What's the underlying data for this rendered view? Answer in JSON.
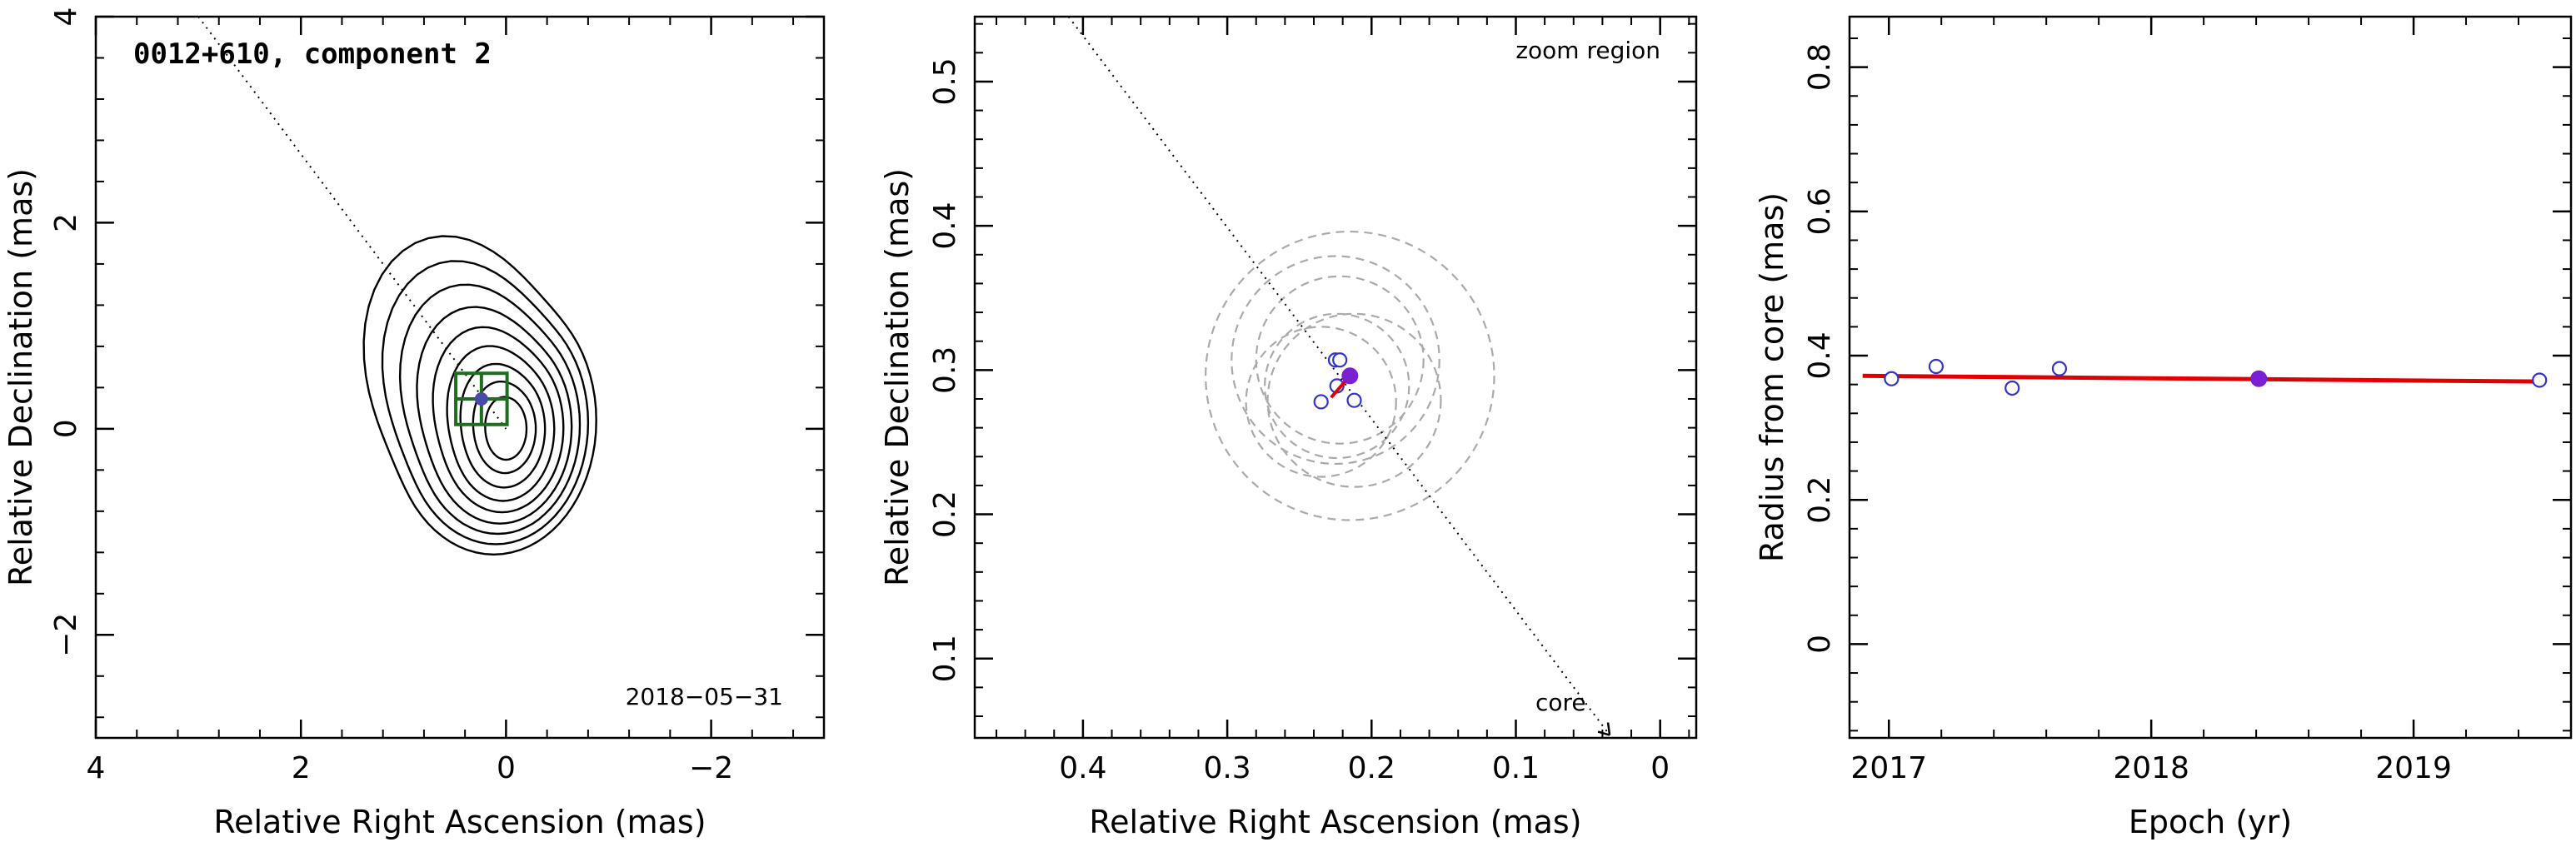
{
  "chart_data": [
    {
      "type": "contour",
      "title": "0012+610, component 2",
      "date_label": "2018−05−31",
      "xlabel": "Relative Right Ascension (mas)",
      "ylabel": "Relative Declination (mas)",
      "xlim": [
        4,
        -3.1
      ],
      "ylim": [
        -3.0,
        4.0
      ],
      "xticks": [
        4,
        2,
        0,
        -2
      ],
      "xtick_labels": [
        "4",
        "2",
        "0",
        "−2"
      ],
      "yticks": [
        -2,
        0,
        2,
        4
      ],
      "ytick_labels": [
        "−2",
        "0",
        "2",
        "4"
      ],
      "component_position": {
        "x": 0.24,
        "y": 0.29
      },
      "core_direction_line": {
        "from": [
          3.0,
          4.0
        ],
        "to": [
          0.0,
          0.0
        ]
      },
      "contours": [
        {
          "rx": 1.0,
          "ry": 1.3,
          "cx": 0.12,
          "cy": 0.08
        },
        {
          "rx": 0.9,
          "ry": 1.18,
          "cx": 0.1,
          "cy": 0.06
        },
        {
          "rx": 0.8,
          "ry": 1.06,
          "cx": 0.08,
          "cy": 0.04
        },
        {
          "rx": 0.7,
          "ry": 0.94,
          "cx": 0.06,
          "cy": 0.02
        },
        {
          "rx": 0.6,
          "ry": 0.82,
          "cx": 0.04,
          "cy": 0.01
        },
        {
          "rx": 0.5,
          "ry": 0.7,
          "cx": 0.03,
          "cy": 0.0
        },
        {
          "rx": 0.4,
          "ry": 0.57,
          "cx": 0.02,
          "cy": 0.0
        },
        {
          "rx": 0.3,
          "ry": 0.43,
          "cx": 0.01,
          "cy": 0.0
        },
        {
          "rx": 0.2,
          "ry": 0.3,
          "cx": 0.0,
          "cy": 0.0
        }
      ],
      "colors": {
        "contour": "#000000",
        "box": "#1f6e1f",
        "marker": "#4a4aa8"
      }
    },
    {
      "type": "scatter",
      "title": "zoom region",
      "core_label": "core",
      "xlabel": "Relative Right Ascension (mas)",
      "ylabel": "Relative Declination (mas)",
      "xlim": [
        0.475,
        -0.025
      ],
      "ylim": [
        0.045,
        0.545
      ],
      "xticks": [
        0.4,
        0.3,
        0.2,
        0.1,
        0
      ],
      "xtick_labels": [
        "0.4",
        "0.3",
        "0.2",
        "0.1",
        "0"
      ],
      "yticks": [
        0.1,
        0.2,
        0.3,
        0.4,
        0.5
      ],
      "ytick_labels": [
        "0.1",
        "0.2",
        "0.3",
        "0.4",
        "0.5"
      ],
      "points_open": [
        {
          "x": 0.225,
          "y": 0.307
        },
        {
          "x": 0.222,
          "y": 0.307
        },
        {
          "x": 0.235,
          "y": 0.278
        },
        {
          "x": 0.212,
          "y": 0.279
        },
        {
          "x": 0.224,
          "y": 0.289
        }
      ],
      "point_filled": {
        "x": 0.215,
        "y": 0.296
      },
      "circles": [
        {
          "x": 0.215,
          "y": 0.296,
          "r": 0.1
        },
        {
          "x": 0.225,
          "y": 0.307,
          "r": 0.072
        },
        {
          "x": 0.222,
          "y": 0.307,
          "r": 0.058
        },
        {
          "x": 0.212,
          "y": 0.279,
          "r": 0.06
        },
        {
          "x": 0.224,
          "y": 0.289,
          "r": 0.05
        },
        {
          "x": 0.235,
          "y": 0.278,
          "r": 0.052
        }
      ],
      "direction_line": {
        "from": [
          0.41,
          0.545
        ],
        "to": [
          0.035,
          0.047
        ]
      },
      "motion_vector": {
        "from": [
          0.215,
          0.296
        ],
        "to": [
          0.228,
          0.281
        ]
      },
      "colors": {
        "open": "#3333cc",
        "filled": "#7a1fd1",
        "circle": "#aaaaaa",
        "vector": "#e00000"
      }
    },
    {
      "type": "scatter",
      "xlabel": "Epoch (yr)",
      "ylabel": "Radius from core (mas)",
      "xlim": [
        2016.85,
        2019.6
      ],
      "ylim": [
        -0.13,
        0.87
      ],
      "xticks": [
        2017,
        2018,
        2019
      ],
      "xtick_labels": [
        "2017",
        "2018",
        "2019"
      ],
      "yticks": [
        0,
        0.2,
        0.4,
        0.6,
        0.8
      ],
      "ytick_labels": [
        "0",
        "0.2",
        "0.4",
        "0.6",
        "0.8"
      ],
      "points_open": [
        {
          "x": 2017.01,
          "y": 0.368
        },
        {
          "x": 2017.18,
          "y": 0.385
        },
        {
          "x": 2017.47,
          "y": 0.355
        },
        {
          "x": 2017.65,
          "y": 0.382
        },
        {
          "x": 2019.48,
          "y": 0.366
        }
      ],
      "point_filled": {
        "x": 2018.41,
        "y": 0.368
      },
      "fit_line": {
        "x": [
          2016.9,
          2019.5
        ],
        "y": [
          0.372,
          0.364
        ]
      },
      "colors": {
        "open": "#3333cc",
        "filled": "#7a1fd1",
        "fit": "#e00000"
      }
    }
  ]
}
